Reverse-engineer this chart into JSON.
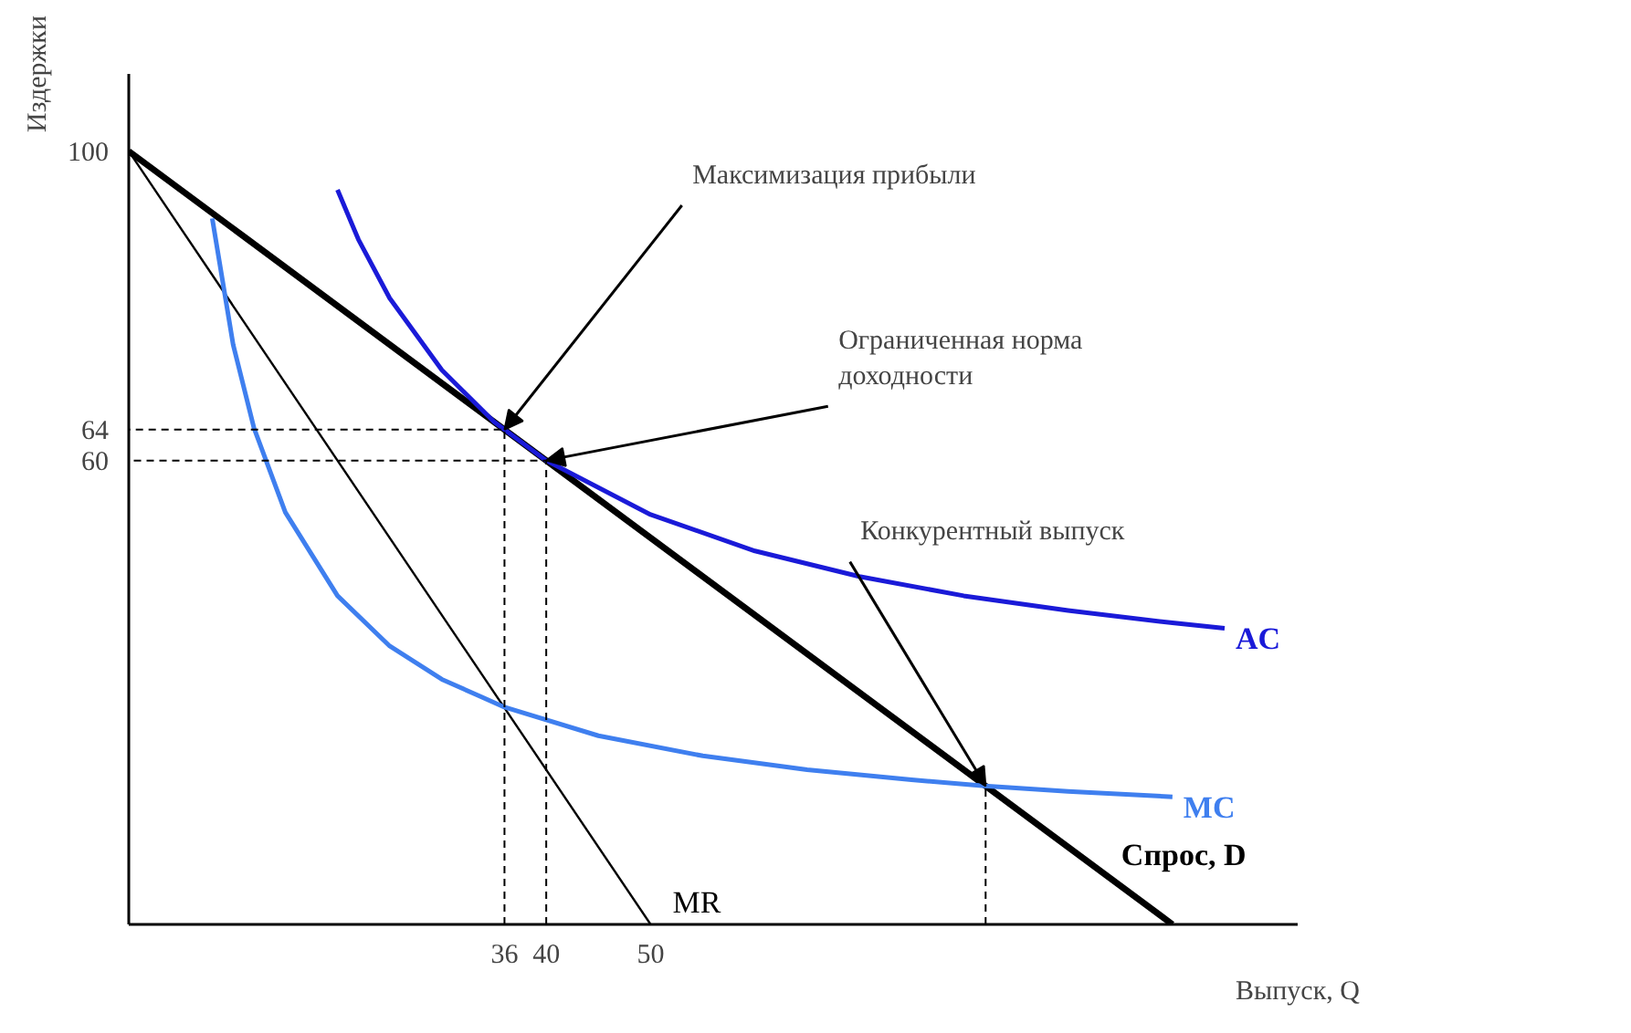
{
  "chart_data": {
    "type": "line",
    "xlabel": "Выпуск, Q",
    "ylabel": "Издержки",
    "xlim": [
      0,
      112
    ],
    "ylim": [
      0,
      110
    ],
    "xticks": [
      36,
      40,
      50
    ],
    "yticks": [
      60,
      64,
      100
    ],
    "grid": false,
    "marker": "none",
    "series": [
      {
        "name": "Спрос, D",
        "color": "#000000",
        "x": [
          0,
          100
        ],
        "values": [
          100,
          0
        ]
      },
      {
        "name": "MR",
        "color": "#000000",
        "x": [
          0,
          50
        ],
        "values": [
          100,
          0
        ]
      },
      {
        "name": "AC",
        "color": "#1a1ad8",
        "x": [
          20,
          22,
          25,
          30,
          35,
          40,
          50,
          60,
          70,
          80,
          90,
          100,
          105
        ],
        "values": [
          95,
          88.6,
          81,
          71.7,
          65,
          60,
          53,
          48.3,
          45,
          42.5,
          40.6,
          39,
          38.3
        ]
      },
      {
        "name": "MC",
        "color": "#3f7fef",
        "x": [
          8,
          10,
          12,
          15,
          20,
          25,
          30,
          36,
          45,
          55,
          65,
          75,
          82,
          90,
          100
        ],
        "values": [
          91.3,
          75,
          64.2,
          53.3,
          42.5,
          36,
          31.7,
          28.1,
          24.4,
          21.8,
          20,
          18.7,
          17.9,
          17.2,
          16.5
        ]
      },
      {
        "color": "#000000",
        "line_style": "dashed",
        "x": [
          36,
          36,
          0
        ],
        "values": [
          0,
          64,
          64
        ]
      },
      {
        "color": "#000000",
        "line_style": "dashed",
        "x": [
          40,
          40,
          0
        ],
        "values": [
          0,
          60,
          60
        ]
      },
      {
        "color": "#000000",
        "line_style": "dashed",
        "x": [
          82.1,
          82.1
        ],
        "values": [
          0,
          17.9
        ]
      }
    ],
    "annotations": [
      {
        "text": "Максимизация прибыли",
        "x": 36,
        "y": 64
      },
      {
        "text": "Ограниченная норма\nдоходности",
        "x": 40,
        "y": 60
      },
      {
        "text": "Конкурентный выпуск",
        "x": 82.1,
        "y": 17.9
      }
    ]
  }
}
